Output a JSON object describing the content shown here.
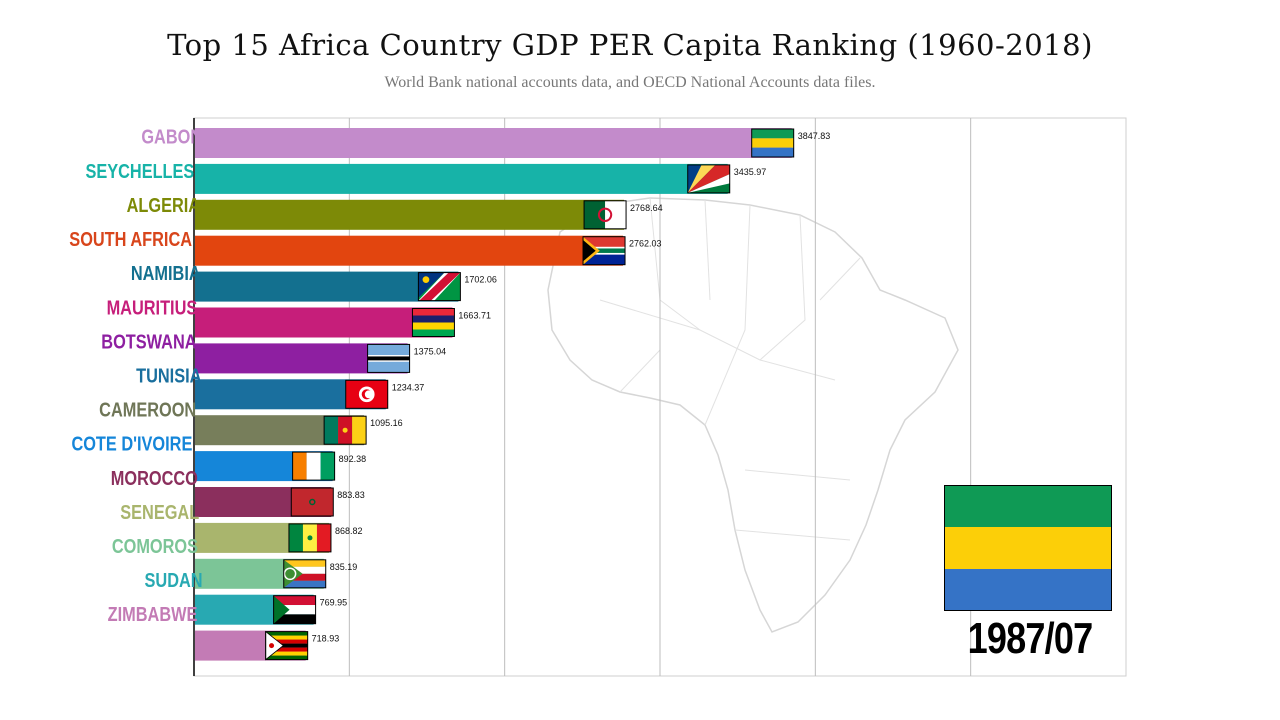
{
  "chart_data": {
    "type": "bar",
    "orientation": "horizontal",
    "title": "Top 15 Africa Country GDP PER Capita Ranking (1960-2018)",
    "subtitle": "World Bank national accounts data, and OECD National Accounts data files.",
    "period": "1987/07",
    "xlim": [
      0,
      6000
    ],
    "grid": true,
    "categories": [
      "GABON",
      "SEYCHELLES",
      "ALGERIA",
      "SOUTH AFRICA",
      "NAMIBIA",
      "MAURITIUS",
      "BOTSWANA",
      "TUNISIA",
      "CAMEROON",
      "COTE D'IVOIRE",
      "MOROCCO",
      "SENEGAL",
      "COMOROS",
      "SUDAN",
      "ZIMBABWE"
    ],
    "values": [
      3847.83,
      3435.97,
      2768.64,
      2762.03,
      1702.06,
      1663.71,
      1375.04,
      1234.37,
      1095.16,
      892.38,
      883.83,
      868.82,
      835.19,
      769.95,
      718.93
    ],
    "value_labels": [
      "3847.83",
      "3435.97",
      "2768.64",
      "2762.03",
      "1702.06",
      "1663.71",
      "1375.04",
      "1234.37",
      "1095.16",
      "892.38",
      "883.83",
      "868.82",
      "835.19",
      "769.95",
      "718.93"
    ],
    "colors": [
      "#c38bcb",
      "#17b3a8",
      "#7d8a07",
      "#e2450f",
      "#13708f",
      "#c61e7a",
      "#8e1fa1",
      "#1a6f9e",
      "#777e5b",
      "#1586d9",
      "#8b2f5d",
      "#a9b56d",
      "#7cc597",
      "#28a9b2",
      "#c37bb5"
    ],
    "label_colors": [
      "#c38bcb",
      "#17b3a8",
      "#7d8a07",
      "#d8451b",
      "#13708f",
      "#c61e7a",
      "#8e1fa1",
      "#1a6f9e",
      "#6f7657",
      "#1586d9",
      "#8b2f5d",
      "#a9b56d",
      "#7cc597",
      "#28a9b2",
      "#c37bb5"
    ],
    "flags": [
      "gabon",
      "seychelles",
      "algeria",
      "south-africa",
      "namibia",
      "mauritius",
      "botswana",
      "tunisia",
      "cameroon",
      "cote-divoire",
      "morocco",
      "senegal",
      "comoros",
      "sudan",
      "zimbabwe"
    ],
    "big_flag": {
      "name": "gabon-flag",
      "stripes": [
        "#0f9a55",
        "#fccf08",
        "#3573c6"
      ]
    }
  }
}
